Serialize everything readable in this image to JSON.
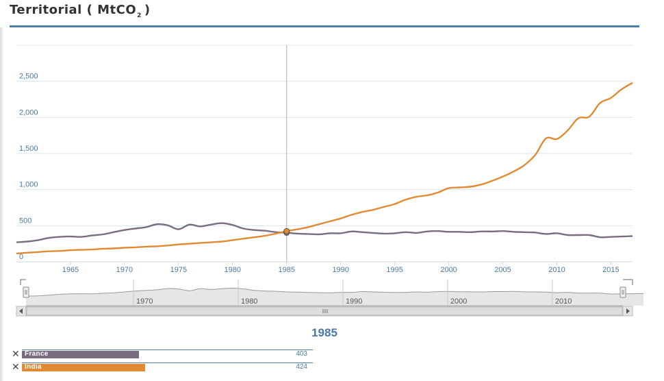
{
  "header": {
    "title_main": "Territorial ( MtCO",
    "title_sub": "2",
    "title_end": ")"
  },
  "colors": {
    "accent": "#4c7fa8",
    "france": "#7a6c80",
    "india": "#e08a33",
    "navigator_fill": "#e6e6e6",
    "navigator_line": "#999999"
  },
  "chart_data": {
    "type": "line",
    "title": "Territorial ( MtCO2 )",
    "xlabel": "",
    "ylabel": "",
    "xlim": [
      1960,
      2017
    ],
    "ylim": [
      0,
      3000
    ],
    "yticks": [
      0,
      500,
      1000,
      1500,
      2000,
      2500
    ],
    "ytick_labels": [
      "0",
      "500",
      "1,000",
      "1,500",
      "2,000",
      "2,500"
    ],
    "xticks": [
      1965,
      1970,
      1975,
      1980,
      1985,
      1990,
      1995,
      2000,
      2005,
      2010,
      2015
    ],
    "x": [
      1960,
      1961,
      1962,
      1963,
      1964,
      1965,
      1966,
      1967,
      1968,
      1969,
      1970,
      1971,
      1972,
      1973,
      1974,
      1975,
      1976,
      1977,
      1978,
      1979,
      1980,
      1981,
      1982,
      1983,
      1984,
      1985,
      1986,
      1987,
      1988,
      1989,
      1990,
      1991,
      1992,
      1993,
      1994,
      1995,
      1996,
      1997,
      1998,
      1999,
      2000,
      2001,
      2002,
      2003,
      2004,
      2005,
      2006,
      2007,
      2008,
      2009,
      2010,
      2011,
      2012,
      2013,
      2014,
      2015,
      2016,
      2017
    ],
    "series": [
      {
        "name": "France",
        "color": "#7a6c80",
        "values": [
          270,
          280,
          300,
          330,
          345,
          350,
          345,
          365,
          380,
          410,
          440,
          460,
          480,
          520,
          505,
          450,
          515,
          490,
          515,
          535,
          510,
          460,
          440,
          430,
          410,
          403,
          390,
          385,
          380,
          395,
          395,
          420,
          410,
          400,
          390,
          395,
          410,
          400,
          420,
          425,
          415,
          415,
          410,
          420,
          420,
          425,
          415,
          410,
          405,
          385,
          395,
          370,
          370,
          370,
          340,
          345,
          350,
          355
        ]
      },
      {
        "name": "India",
        "color": "#e08a33",
        "values": [
          115,
          125,
          135,
          145,
          150,
          160,
          165,
          170,
          180,
          185,
          195,
          200,
          210,
          215,
          225,
          240,
          250,
          260,
          270,
          280,
          300,
          320,
          340,
          360,
          390,
          424,
          450,
          480,
          520,
          560,
          600,
          650,
          690,
          720,
          760,
          800,
          860,
          900,
          920,
          960,
          1020,
          1030,
          1040,
          1070,
          1120,
          1180,
          1250,
          1340,
          1480,
          1710,
          1700,
          1820,
          1990,
          2010,
          2200,
          2270,
          2390,
          2480
        ]
      }
    ],
    "navigator": {
      "xticks": [
        1970,
        1980,
        1990,
        2000,
        2010
      ],
      "range": [
        1960,
        2017
      ]
    },
    "selected_year": 1985
  },
  "tooltip_panel": {
    "year": "1985",
    "rows": [
      {
        "country": "France",
        "value": "403",
        "value_num": 403,
        "color": "#7a6c80"
      },
      {
        "country": "India",
        "value": "424",
        "value_num": 424,
        "color": "#e08a33"
      }
    ],
    "close_glyph": "✕"
  }
}
